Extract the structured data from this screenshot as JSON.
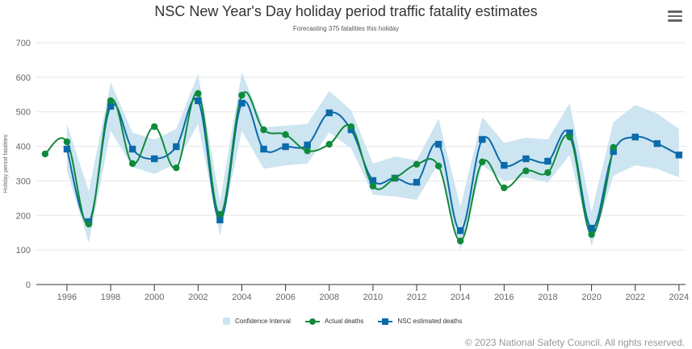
{
  "header": {
    "menu_icon": "hamburger-menu-icon"
  },
  "credits": "© 2023 National Safety Council. All rights reserved.",
  "colors": {
    "actual": "#0f8a3b",
    "estimated": "#0a6aaa",
    "confidence": "#cde4f1",
    "grid": "#e6e6e6",
    "axis": "#333333"
  },
  "chart_data": {
    "type": "line",
    "title": "NSC New Year's Day holiday period traffic fatality estimates",
    "subtitle": "Forecasting 375 fatalities this holiday",
    "xlabel": "",
    "ylabel": "Holiday period fatalities",
    "xlim": [
      1995,
      2024
    ],
    "ylim": [
      0,
      700
    ],
    "yticks": [
      0,
      100,
      200,
      300,
      400,
      500,
      600,
      700
    ],
    "xticks": [
      1996,
      1998,
      2000,
      2002,
      2004,
      2006,
      2008,
      2010,
      2012,
      2014,
      2016,
      2018,
      2020,
      2022,
      2024
    ],
    "grid": true,
    "legend_position": "bottom-center",
    "legend": [
      "Confidence Interval",
      "Actual deaths",
      "NSC estimated deaths"
    ],
    "series": [
      {
        "name": "Confidence Interval",
        "type": "arearange",
        "x": [
          1996,
          1997,
          1998,
          1999,
          2000,
          2001,
          2002,
          2003,
          2004,
          2005,
          2006,
          2007,
          2008,
          2009,
          2010,
          2011,
          2012,
          2013,
          2014,
          2015,
          2016,
          2017,
          2018,
          2019,
          2020,
          2021,
          2022,
          2023,
          2024
        ],
        "low": [
          330,
          120,
          445,
          340,
          320,
          350,
          465,
          140,
          445,
          335,
          345,
          350,
          440,
          395,
          260,
          255,
          245,
          350,
          100,
          345,
          300,
          310,
          295,
          375,
          110,
          315,
          345,
          335,
          310
        ],
        "high": [
          465,
          270,
          585,
          440,
          420,
          450,
          610,
          240,
          615,
          455,
          460,
          465,
          560,
          505,
          350,
          370,
          360,
          480,
          225,
          485,
          410,
          425,
          420,
          525,
          210,
          470,
          520,
          495,
          450
        ]
      },
      {
        "name": "Actual deaths",
        "type": "spline",
        "marker": "circle",
        "x": [
          1995,
          1996,
          1997,
          1998,
          1999,
          2000,
          2001,
          2002,
          2003,
          2004,
          2005,
          2006,
          2007,
          2008,
          2009,
          2010,
          2011,
          2012,
          2013,
          2014,
          2015,
          2016,
          2017,
          2018,
          2019,
          2020,
          2021
        ],
        "values": [
          378,
          413,
          175,
          532,
          350,
          457,
          338,
          553,
          203,
          548,
          448,
          434,
          387,
          406,
          457,
          285,
          308,
          348,
          343,
          126,
          355,
          280,
          329,
          324,
          427,
          145,
          397
        ]
      },
      {
        "name": "NSC estimated deaths",
        "type": "spline",
        "marker": "square",
        "x": [
          1996,
          1997,
          1998,
          1999,
          2000,
          2001,
          2002,
          2003,
          2004,
          2005,
          2006,
          2007,
          2008,
          2009,
          2010,
          2011,
          2012,
          2013,
          2014,
          2015,
          2016,
          2017,
          2018,
          2019,
          2020,
          2021,
          2022,
          2023,
          2024
        ],
        "values": [
          392,
          182,
          516,
          392,
          364,
          399,
          532,
          187,
          525,
          392,
          399,
          404,
          497,
          448,
          301,
          308,
          296,
          406,
          156,
          420,
          345,
          364,
          357,
          439,
          163,
          385,
          427,
          408,
          375
        ]
      }
    ]
  }
}
